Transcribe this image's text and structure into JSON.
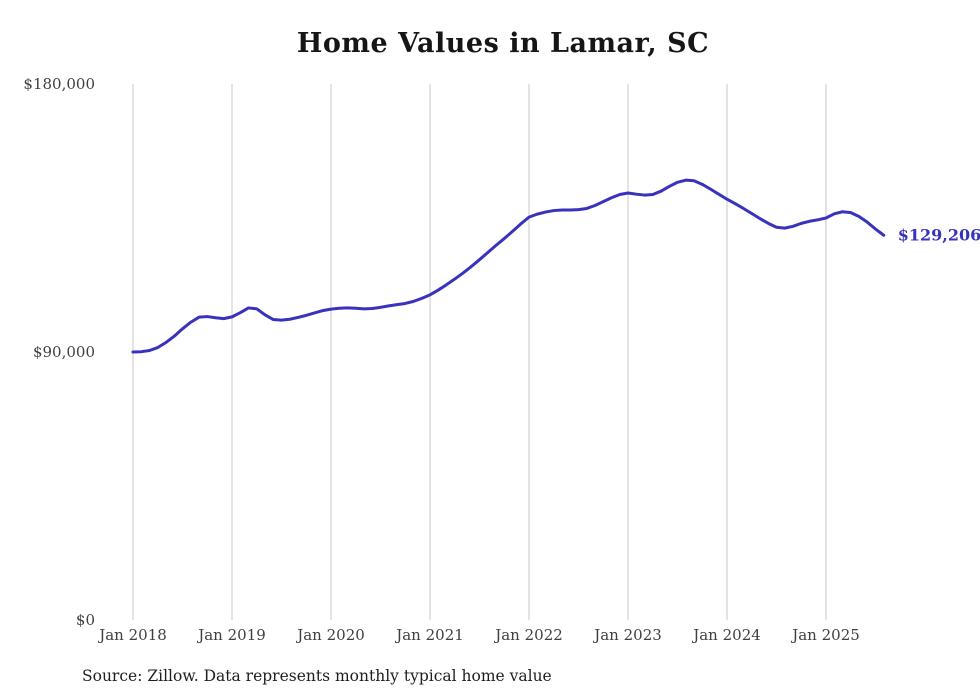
{
  "title": "Home Values in Lamar, SC",
  "source_note": "Source: Zillow. Data represents monthly typical home value",
  "chart_data": {
    "type": "line",
    "title": "Home Values in Lamar, SC",
    "series_name": "Monthly typical home value",
    "x_start": "2018-01",
    "x_end": "2025-08",
    "x_tick_labels": [
      "Jan 2018",
      "Jan 2019",
      "Jan 2020",
      "Jan 2021",
      "Jan 2022",
      "Jan 2023",
      "Jan 2024",
      "Jan 2025"
    ],
    "y_ticks": [
      {
        "value": 0,
        "label": "$0"
      },
      {
        "value": 90000,
        "label": "$90,000"
      },
      {
        "value": 180000,
        "label": "$180,000"
      }
    ],
    "ylim": [
      0,
      180000
    ],
    "grid": "vertical",
    "legend": "none",
    "line_color": "#3832bc",
    "last_value": 129206,
    "last_value_label": "$129,206",
    "values": [
      90000,
      90100,
      90500,
      91500,
      93200,
      95300,
      97800,
      100000,
      101700,
      101900,
      101500,
      101200,
      101800,
      103200,
      104800,
      104500,
      102500,
      100900,
      100700,
      101000,
      101600,
      102300,
      103100,
      103900,
      104400,
      104700,
      104800,
      104700,
      104500,
      104600,
      105000,
      105500,
      105900,
      106300,
      107000,
      108000,
      109200,
      110800,
      112600,
      114500,
      116500,
      118700,
      121000,
      123400,
      125800,
      128100,
      130500,
      133000,
      135300,
      136300,
      137000,
      137500,
      137700,
      137700,
      137800,
      138200,
      139200,
      140500,
      141800,
      142900,
      143400,
      143000,
      142700,
      142900,
      144000,
      145600,
      147000,
      147700,
      147500,
      146300,
      144700,
      143000,
      141300,
      139800,
      138200,
      136500,
      134800,
      133200,
      131900,
      131600,
      132200,
      133200,
      133900,
      134400,
      135000,
      136400,
      137100,
      136800,
      135500,
      133600,
      131300,
      129206
    ]
  }
}
